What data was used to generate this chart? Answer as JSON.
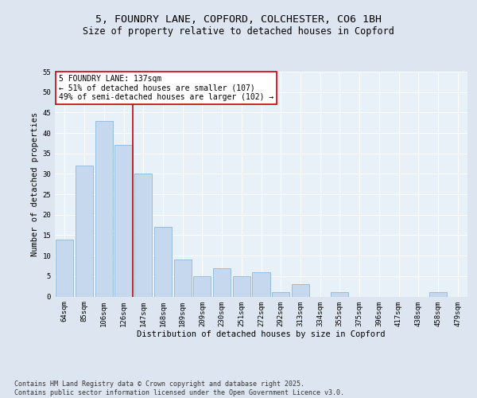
{
  "title_line1": "5, FOUNDRY LANE, COPFORD, COLCHESTER, CO6 1BH",
  "title_line2": "Size of property relative to detached houses in Copford",
  "xlabel": "Distribution of detached houses by size in Copford",
  "ylabel": "Number of detached properties",
  "categories": [
    "64sqm",
    "85sqm",
    "106sqm",
    "126sqm",
    "147sqm",
    "168sqm",
    "189sqm",
    "209sqm",
    "230sqm",
    "251sqm",
    "272sqm",
    "292sqm",
    "313sqm",
    "334sqm",
    "355sqm",
    "375sqm",
    "396sqm",
    "417sqm",
    "438sqm",
    "458sqm",
    "479sqm"
  ],
  "values": [
    14,
    32,
    43,
    37,
    30,
    17,
    9,
    5,
    7,
    5,
    6,
    1,
    3,
    0,
    1,
    0,
    0,
    0,
    0,
    1,
    0
  ],
  "bar_color": "#c5d8ed",
  "bar_edge_color": "#8fb8d8",
  "vline_index": 3,
  "vline_color": "#cc0000",
  "annotation_text": "5 FOUNDRY LANE: 137sqm\n← 51% of detached houses are smaller (107)\n49% of semi-detached houses are larger (102) →",
  "annotation_box_color": "#ffffff",
  "annotation_box_edge": "#cc0000",
  "bg_color": "#dde6f0",
  "plot_bg_color": "#e8f0f8",
  "grid_color": "#ffffff",
  "ylim": [
    0,
    55
  ],
  "yticks": [
    0,
    5,
    10,
    15,
    20,
    25,
    30,
    35,
    40,
    45,
    50,
    55
  ],
  "footnote": "Contains HM Land Registry data © Crown copyright and database right 2025.\nContains public sector information licensed under the Open Government Licence v3.0.",
  "title_fontsize": 9.5,
  "subtitle_fontsize": 8.5,
  "axis_label_fontsize": 7.5,
  "tick_fontsize": 6.5,
  "annotation_fontsize": 7,
  "footnote_fontsize": 6
}
